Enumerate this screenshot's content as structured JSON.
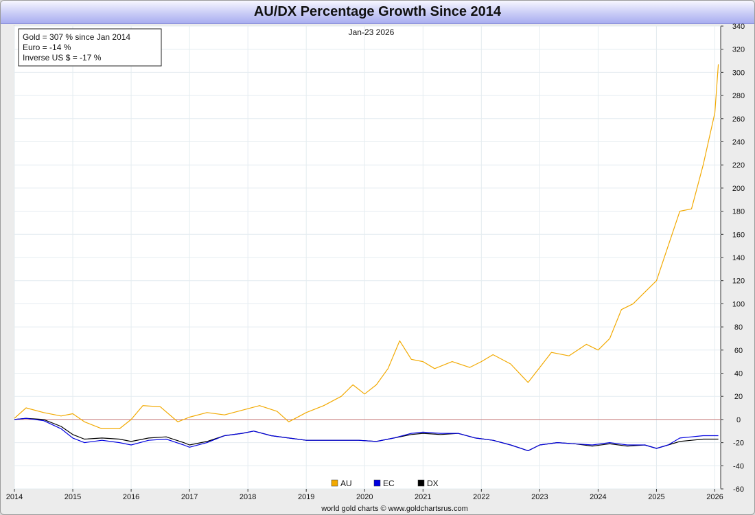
{
  "title": "AU/DX Percentage Growth Since 2014",
  "date_label": "Jan-23  2026",
  "info_box": [
    "Gold = 307 % since Jan 2014",
    "Euro = -14 %",
    "Inverse US $ = -17 %"
  ],
  "credit": "world gold charts © www.goldchartsrus.com",
  "colors": {
    "AU": "#f2a900",
    "EC": "#0000e0",
    "DX": "#000000",
    "zero_line": "#c87878",
    "grid": "#e4ecf0"
  },
  "chart_data": {
    "type": "line",
    "title": "AU/DX Percentage Growth Since 2014",
    "xlabel": "",
    "ylabel": "",
    "xlim": [
      2014.0,
      2026.1
    ],
    "ylim": [
      -60,
      340
    ],
    "x_ticks": [
      "2014",
      "2015",
      "2016",
      "2017",
      "2018",
      "2019",
      "2020",
      "2021",
      "2022",
      "2023",
      "2024",
      "2025",
      "2026"
    ],
    "y_ticks": [
      340,
      320,
      300,
      280,
      260,
      240,
      220,
      200,
      180,
      160,
      140,
      120,
      100,
      80,
      60,
      40,
      20,
      0,
      -20,
      -40,
      -60
    ],
    "y_axis_side": "right",
    "grid": true,
    "legend": {
      "position": "bottom-center",
      "entries": [
        "AU",
        "EC",
        "DX"
      ]
    },
    "reference_line": 0,
    "series": [
      {
        "name": "AU",
        "x": [
          2014.0,
          2014.2,
          2014.5,
          2014.8,
          2015.0,
          2015.2,
          2015.5,
          2015.8,
          2016.0,
          2016.2,
          2016.5,
          2016.8,
          2017.0,
          2017.3,
          2017.6,
          2017.9,
          2018.2,
          2018.5,
          2018.7,
          2019.0,
          2019.3,
          2019.6,
          2019.8,
          2020.0,
          2020.2,
          2020.4,
          2020.6,
          2020.8,
          2021.0,
          2021.2,
          2021.5,
          2021.8,
          2022.0,
          2022.2,
          2022.5,
          2022.8,
          2023.0,
          2023.2,
          2023.5,
          2023.8,
          2024.0,
          2024.2,
          2024.4,
          2024.6,
          2024.8,
          2025.0,
          2025.2,
          2025.4,
          2025.6,
          2025.8,
          2026.0,
          2026.06
        ],
        "values": [
          1,
          10,
          6,
          3,
          5,
          -2,
          -8,
          -8,
          0,
          12,
          11,
          -2,
          2,
          6,
          4,
          8,
          12,
          7,
          -2,
          6,
          12,
          20,
          30,
          22,
          30,
          44,
          68,
          52,
          50,
          44,
          50,
          45,
          50,
          56,
          48,
          32,
          45,
          58,
          55,
          65,
          60,
          70,
          95,
          100,
          110,
          120,
          150,
          180,
          182,
          220,
          265,
          307
        ]
      },
      {
        "name": "EC",
        "x": [
          2014.0,
          2014.2,
          2014.5,
          2014.8,
          2015.0,
          2015.2,
          2015.5,
          2015.8,
          2016.0,
          2016.3,
          2016.6,
          2016.9,
          2017.0,
          2017.3,
          2017.6,
          2017.9,
          2018.1,
          2018.4,
          2018.7,
          2019.0,
          2019.3,
          2019.6,
          2019.9,
          2020.2,
          2020.5,
          2020.8,
          2021.0,
          2021.3,
          2021.6,
          2021.9,
          2022.2,
          2022.5,
          2022.8,
          2023.0,
          2023.3,
          2023.6,
          2023.9,
          2024.2,
          2024.5,
          2024.8,
          2025.0,
          2025.2,
          2025.4,
          2025.6,
          2025.8,
          2026.06
        ],
        "values": [
          0,
          1,
          -1,
          -8,
          -16,
          -20,
          -18,
          -20,
          -22,
          -18,
          -17,
          -22,
          -24,
          -20,
          -14,
          -12,
          -10,
          -14,
          -16,
          -18,
          -18,
          -18,
          -18,
          -19,
          -16,
          -12,
          -11,
          -12,
          -12,
          -16,
          -18,
          -22,
          -27,
          -22,
          -20,
          -21,
          -22,
          -20,
          -22,
          -22,
          -25,
          -22,
          -16,
          -15,
          -14,
          -14
        ]
      },
      {
        "name": "DX",
        "x": [
          2014.0,
          2014.2,
          2014.5,
          2014.8,
          2015.0,
          2015.2,
          2015.5,
          2015.8,
          2016.0,
          2016.3,
          2016.6,
          2016.9,
          2017.0,
          2017.3,
          2017.6,
          2017.9,
          2018.1,
          2018.4,
          2018.7,
          2019.0,
          2019.3,
          2019.6,
          2019.9,
          2020.2,
          2020.5,
          2020.8,
          2021.0,
          2021.3,
          2021.6,
          2021.9,
          2022.2,
          2022.5,
          2022.8,
          2023.0,
          2023.3,
          2023.6,
          2023.9,
          2024.2,
          2024.5,
          2024.8,
          2025.0,
          2025.2,
          2025.4,
          2025.6,
          2025.8,
          2026.06
        ],
        "values": [
          0,
          1,
          0,
          -6,
          -13,
          -17,
          -16,
          -17,
          -19,
          -16,
          -15,
          -20,
          -22,
          -19,
          -14,
          -12,
          -10,
          -14,
          -16,
          -18,
          -18,
          -18,
          -18,
          -19,
          -16,
          -13,
          -12,
          -13,
          -12,
          -16,
          -18,
          -22,
          -27,
          -22,
          -20,
          -21,
          -23,
          -21,
          -23,
          -22,
          -25,
          -22,
          -19,
          -18,
          -17,
          -17
        ]
      }
    ]
  }
}
